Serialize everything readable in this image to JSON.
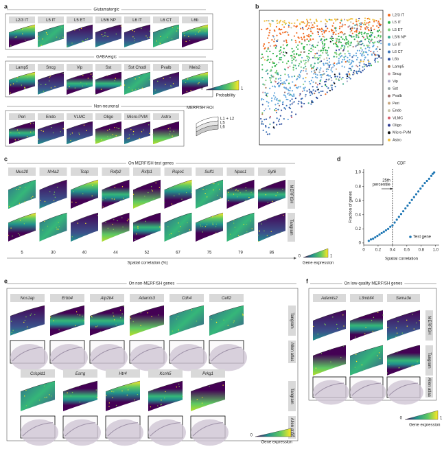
{
  "panels": {
    "a": {
      "label": "a",
      "groups": [
        {
          "title": "Glutamatergic",
          "tiles": [
            "L2/3 IT",
            "L5 IT",
            "L5 ET",
            "L5/6 NP",
            "L6 IT",
            "L6 CT",
            "L6b"
          ]
        },
        {
          "title": "GABAergic",
          "tiles": [
            "Lamp5",
            "Sncg",
            "Vip",
            "Sst",
            "Sst Chodl",
            "Pvalb",
            "Meis2"
          ]
        },
        {
          "title": "Non-neuronal",
          "tiles": [
            "Peri",
            "Endo",
            "VLMC",
            "Oligo",
            "Micro-PVM",
            "Astro"
          ]
        }
      ],
      "colorbar": {
        "min": 0,
        "max": 1,
        "label": "Probability"
      },
      "roi": {
        "title": "MERFISH ROI",
        "layers": [
          "L1 + L2",
          "L5",
          "L6"
        ]
      }
    },
    "b": {
      "label": "b",
      "legend": [
        {
          "name": "L2/3 IT",
          "color": "#f26b21"
        },
        {
          "name": "L5 IT",
          "color": "#2fb34a"
        },
        {
          "name": "L5 ET",
          "color": "#7fcf7a"
        },
        {
          "name": "L5/6 NP",
          "color": "#3fa98d"
        },
        {
          "name": "L6 IT",
          "color": "#62a6dc"
        },
        {
          "name": "L6 CT",
          "color": "#3a73b8"
        },
        {
          "name": "L6b",
          "color": "#2f4f9e"
        },
        {
          "name": "Lamp5",
          "color": "#b07a56"
        },
        {
          "name": "Sncg",
          "color": "#c59aa6"
        },
        {
          "name": "Vip",
          "color": "#a9a9c9"
        },
        {
          "name": "Sst",
          "color": "#9aa6a6"
        },
        {
          "name": "Pvalb",
          "color": "#9b6f6f"
        },
        {
          "name": "Peri",
          "color": "#c7a57d"
        },
        {
          "name": "Endo",
          "color": "#c9c5a9"
        },
        {
          "name": "VLMC",
          "color": "#d55d6a"
        },
        {
          "name": "Oligo",
          "color": "#2e3a90"
        },
        {
          "name": "Micro-PVM",
          "color": "#111111"
        },
        {
          "name": "Astro",
          "color": "#f0c040"
        }
      ]
    },
    "c": {
      "label": "c",
      "title": "On MERFISH test genes",
      "genes": [
        "Muc20",
        "Nr4a2",
        "Tcap",
        "Rxfp2",
        "Rxfp1",
        "Rspo1",
        "Sulf1",
        "Npas1",
        "Syt6"
      ],
      "rows": [
        "MERFISH",
        "Tangram"
      ],
      "correlations": [
        5,
        30,
        40,
        44,
        52,
        67,
        75,
        79,
        86
      ],
      "axis_label": "Spatial correlation (%)",
      "colorbar": {
        "min": 0,
        "max": 1,
        "label": "Gene expression"
      }
    },
    "e": {
      "label": "e",
      "title": "On non-MERFISH genes",
      "rows": [
        "Tangram",
        "Allen atlas"
      ],
      "genes_row1": [
        "Nos1ap",
        "Erbb4",
        "Atp2b4",
        "Adamts3",
        "Cdh4",
        "Celf2"
      ],
      "genes_row2": [
        "Crispld1",
        "Esrrg",
        "Htr4",
        "Kcnh5",
        "Prkg1"
      ],
      "colorbar": {
        "min": 0,
        "max": 1,
        "label": "Gene expression"
      }
    },
    "f": {
      "label": "f",
      "title": "On low-quality MERFISH genes",
      "genes": [
        "Adamts2",
        "L3mbtl4",
        "Sema3e"
      ],
      "rows": [
        "MERFISH",
        "Tangram",
        "Allen atlas"
      ],
      "colorbar": {
        "min": 0,
        "max": 1,
        "label": "Gene expression"
      }
    }
  },
  "chart_data": {
    "type": "scatter",
    "panel_label": "d",
    "title": "CDF",
    "x_label": "Spatial correlation",
    "y_label": "Fraction of genes",
    "x": [
      0.07,
      0.1,
      0.13,
      0.16,
      0.19,
      0.22,
      0.25,
      0.28,
      0.31,
      0.34,
      0.37,
      0.4,
      0.43,
      0.46,
      0.49,
      0.52,
      0.55,
      0.58,
      0.61,
      0.64,
      0.67,
      0.7,
      0.73,
      0.76,
      0.79,
      0.82,
      0.85,
      0.88,
      0.91,
      0.94,
      0.96,
      0.98
    ],
    "series": [
      {
        "name": "Test gene",
        "color": "#1f77b4",
        "values": [
          0.03,
          0.05,
          0.06,
          0.08,
          0.1,
          0.12,
          0.14,
          0.16,
          0.18,
          0.2,
          0.23,
          0.25,
          0.29,
          0.33,
          0.37,
          0.41,
          0.45,
          0.49,
          0.53,
          0.57,
          0.61,
          0.65,
          0.69,
          0.73,
          0.77,
          0.81,
          0.85,
          0.88,
          0.91,
          0.95,
          0.98,
          1.0
        ]
      }
    ],
    "percentile_25": 0.4,
    "annotation": [
      "25th",
      "percentile"
    ],
    "xlim": [
      0,
      1.05
    ],
    "ylim": [
      -0.03,
      1.05
    ],
    "xticks": [
      0,
      0.2,
      0.4,
      0.6,
      0.8,
      {
        "value": 1,
        "label": "1.0"
      }
    ],
    "yticks": [
      0,
      0.2,
      0.4,
      0.6,
      0.8,
      {
        "value": 1,
        "label": "1.0"
      }
    ],
    "legend": "lower right"
  }
}
